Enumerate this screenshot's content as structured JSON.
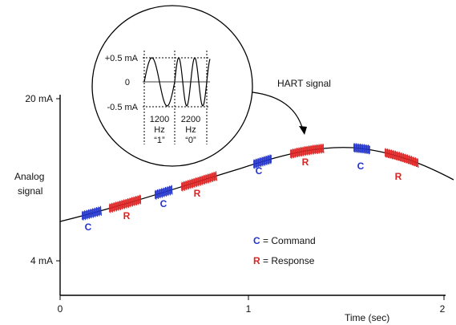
{
  "y_axis": {
    "label_line1": "Analog",
    "label_line2": "signal",
    "tick_top": "20 mA",
    "tick_bottom": "4 mA"
  },
  "x_axis": {
    "ticks": [
      "0",
      "1",
      "2"
    ],
    "label": "Time (sec)"
  },
  "callout": {
    "label": "HART signal",
    "y_ticks": [
      "+0.5 mA",
      "0",
      "-0.5 mA"
    ],
    "freq1": {
      "value": "1200",
      "unit": "Hz",
      "bit": "“1”"
    },
    "freq2": {
      "value": "2200",
      "unit": "Hz",
      "bit": "“0”"
    }
  },
  "legend": {
    "command": {
      "letter": "C",
      "text": " = Command",
      "color": "#2233cc"
    },
    "response": {
      "letter": "R",
      "text": " = Response",
      "color": "#dd2222"
    }
  },
  "bursts": [
    {
      "type": "C"
    },
    {
      "type": "R"
    },
    {
      "type": "C"
    },
    {
      "type": "R"
    },
    {
      "type": "C"
    },
    {
      "type": "R"
    },
    {
      "type": "C"
    },
    {
      "type": "R"
    }
  ]
}
